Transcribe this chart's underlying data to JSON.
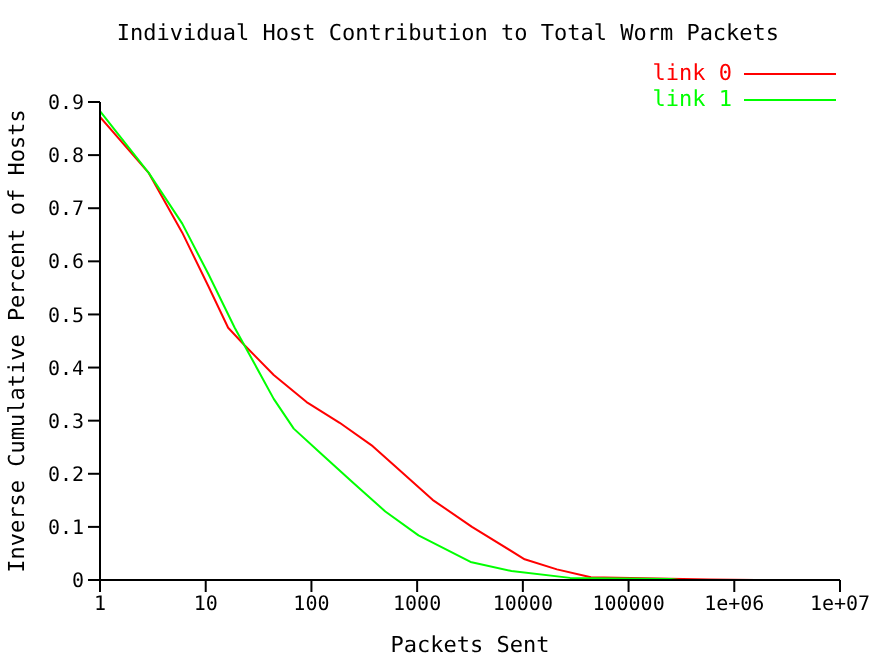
{
  "chart_data": {
    "type": "line",
    "title": "Individual Host Contribution to Total Worm Packets",
    "xlabel": "Packets Sent",
    "ylabel": "Inverse Cumulative Percent of Hosts",
    "log": "x",
    "xlim": [
      1,
      10000000
    ],
    "xticks": [
      1,
      10,
      100,
      1000,
      10000,
      100000,
      {
        "value": 1000000,
        "label": "1e+06"
      },
      {
        "value": 10000000,
        "label": "1e+07"
      }
    ],
    "ylim": [
      0,
      0.9
    ],
    "yticks": [
      0,
      0.1,
      0.2,
      0.3,
      0.4,
      0.5,
      0.6,
      0.7,
      0.8,
      0.9
    ],
    "grid": false,
    "legend": "top right",
    "marker": "none",
    "line_style": "solid",
    "series": [
      {
        "name": "link 0",
        "color": "#ff0000",
        "x": [
          1,
          2.9,
          6,
          10.6,
          16.3,
          23.3,
          44,
          90,
          185,
          380,
          590,
          1400,
          3300,
          10400,
          21000,
          44000,
          580000,
          1600000,
          3200000
        ],
        "values": [
          0.872,
          0.766,
          0.654,
          0.553,
          0.475,
          0.442,
          0.386,
          0.335,
          0.296,
          0.252,
          0.218,
          0.151,
          0.1,
          0.039,
          0.02,
          0.005,
          0.001,
          0,
          0
        ]
      },
      {
        "name": "link 1",
        "color": "#00ff00",
        "x": [
          1,
          2.9,
          6,
          10.6,
          18.8,
          28.8,
          44,
          68,
          120,
          245,
          500,
          1030,
          3200,
          7800,
          28000,
          250000,
          300000,
          1600000
        ],
        "values": [
          0.883,
          0.766,
          0.671,
          0.576,
          0.475,
          0.408,
          0.341,
          0.285,
          0.24,
          0.184,
          0.129,
          0.084,
          0.034,
          0.017,
          0.004,
          0.002,
          0,
          0
        ]
      }
    ]
  }
}
